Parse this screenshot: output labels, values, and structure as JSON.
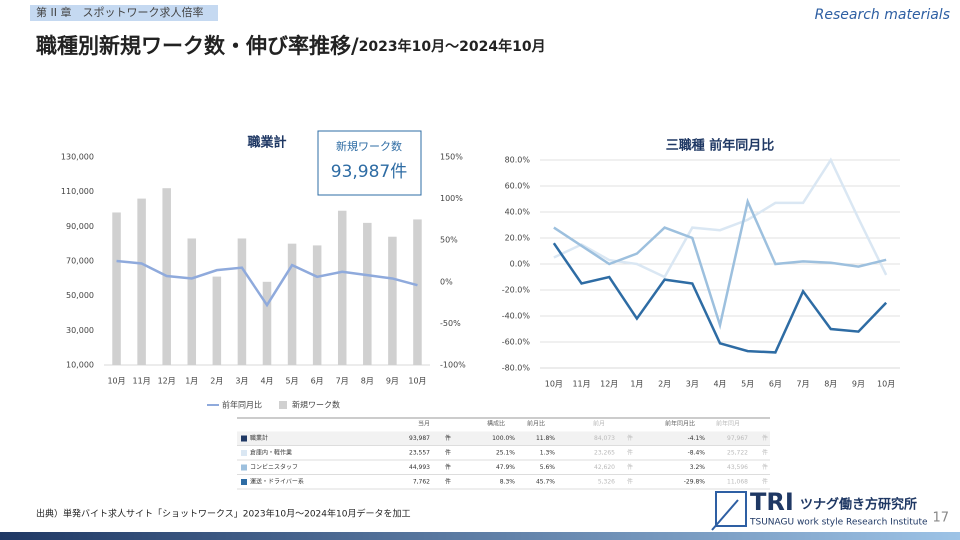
{
  "header": {
    "chapter": "第 II 章　スポットワーク求人倍率",
    "tag": "Research materials",
    "title": "職種別新規ワーク数・伸び率推移/",
    "period": "2023年10月～2024年10月"
  },
  "callout": {
    "label": "新規ワーク数",
    "value": "93,987件"
  },
  "chart_data": [
    {
      "type": "bar",
      "title": "職業計",
      "categories": [
        "10月",
        "11月",
        "12月",
        "1月",
        "2月",
        "3月",
        "4月",
        "5月",
        "6月",
        "7月",
        "8月",
        "9月",
        "10月"
      ],
      "series": [
        {
          "name": "前年同月比",
          "type": "line",
          "axis": "y2",
          "color": "#8faadc",
          "values": [
            25,
            22,
            7,
            4,
            14,
            17,
            -28,
            20,
            6,
            12,
            8,
            4,
            -4.1
          ]
        },
        {
          "name": "新規ワーク数",
          "color": "#d0d0d0",
          "values": [
            98000,
            106000,
            112000,
            83000,
            61000,
            83000,
            58000,
            80000,
            79000,
            99000,
            92000,
            84000,
            93987
          ]
        }
      ],
      "ylim": [
        10000,
        130000
      ],
      "yticks": [
        {
          "value": 10000,
          "label": "10,000"
        },
        {
          "value": 30000,
          "label": "30,000"
        },
        {
          "value": 50000,
          "label": "50,000"
        },
        {
          "value": 70000,
          "label": "70,000"
        },
        {
          "value": 90000,
          "label": "90,000"
        },
        {
          "value": 110000,
          "label": "110,000"
        },
        {
          "value": 130000,
          "label": "130,000"
        }
      ],
      "y2lim": [
        -100,
        150
      ],
      "y2ticks": [
        {
          "value": -100,
          "label": "-100%"
        },
        {
          "value": -50,
          "label": "-50%"
        },
        {
          "value": 0,
          "label": "0%"
        },
        {
          "value": 50,
          "label": "50%"
        },
        {
          "value": 100,
          "label": "100%"
        },
        {
          "value": 150,
          "label": "150%"
        }
      ],
      "grid": false,
      "legend": "bottom"
    },
    {
      "type": "line",
      "title": "三職種 前年同月比",
      "categories": [
        "10月",
        "11月",
        "12月",
        "1月",
        "2月",
        "3月",
        "4月",
        "5月",
        "6月",
        "7月",
        "8月",
        "9月",
        "10月"
      ],
      "series": [
        {
          "color": "#dae7f3",
          "values": [
            5,
            15,
            3,
            0,
            -10,
            28,
            26,
            34,
            47,
            47,
            80,
            35,
            -8.4
          ]
        },
        {
          "color": "#9dc0de",
          "values": [
            28,
            14,
            0,
            8,
            28,
            20,
            -47,
            48,
            0,
            2,
            1,
            -2,
            3.2
          ]
        },
        {
          "color": "#2e6ca4",
          "values": [
            16,
            -15,
            -10,
            -42,
            -12,
            -15,
            -61,
            -67,
            -68,
            -21,
            -50,
            -52,
            -29.8
          ]
        }
      ],
      "ylim": [
        -80,
        80
      ],
      "yticks": [
        {
          "value": -80,
          "label": "-80.0%"
        },
        {
          "value": -60,
          "label": "-60.0%"
        },
        {
          "value": -40,
          "label": "-40.0%"
        },
        {
          "value": -20,
          "label": "-20.0%"
        },
        {
          "value": 0,
          "label": "0.0%"
        },
        {
          "value": 20,
          "label": "20.0%"
        },
        {
          "value": 40,
          "label": "40.0%"
        },
        {
          "value": 60,
          "label": "60.0%"
        },
        {
          "value": 80,
          "label": "80.0%"
        }
      ],
      "grid": true
    }
  ],
  "table": {
    "columns": [
      "当月",
      "構成比",
      "前月比",
      "前月",
      "前年同月比",
      "前年同月"
    ],
    "rows": [
      [
        "職業計",
        "93,987",
        "件",
        "100.0%",
        "11.8%",
        "84,073",
        "件",
        "-4.1%",
        "97,967",
        "件"
      ],
      [
        "倉庫内・軽作業",
        "23,557",
        "件",
        "25.1%",
        "1.3%",
        "23,265",
        "件",
        "-8.4%",
        "25,722",
        "件"
      ],
      [
        "コンビニスタッフ",
        "44,993",
        "件",
        "47.9%",
        "5.6%",
        "42,620",
        "件",
        "3.2%",
        "43,596",
        "件"
      ],
      [
        "運送・ドライバー系",
        "7,762",
        "件",
        "8.3%",
        "45.7%",
        "5,326",
        "件",
        "-29.8%",
        "11,068",
        "件"
      ]
    ],
    "row_colors": [
      "#1f3864",
      "#dae7f3",
      "#9dc0de",
      "#2e6ca4"
    ]
  },
  "footer": {
    "source": "出典）単発バイト求人サイト「ショットワークス」2023年10月～2024年10月データを加工",
    "logo": "TRI",
    "org": "ツナグ働き方研究所",
    "org_en": "TSUNAGU work style Research Institute",
    "page": "17"
  }
}
